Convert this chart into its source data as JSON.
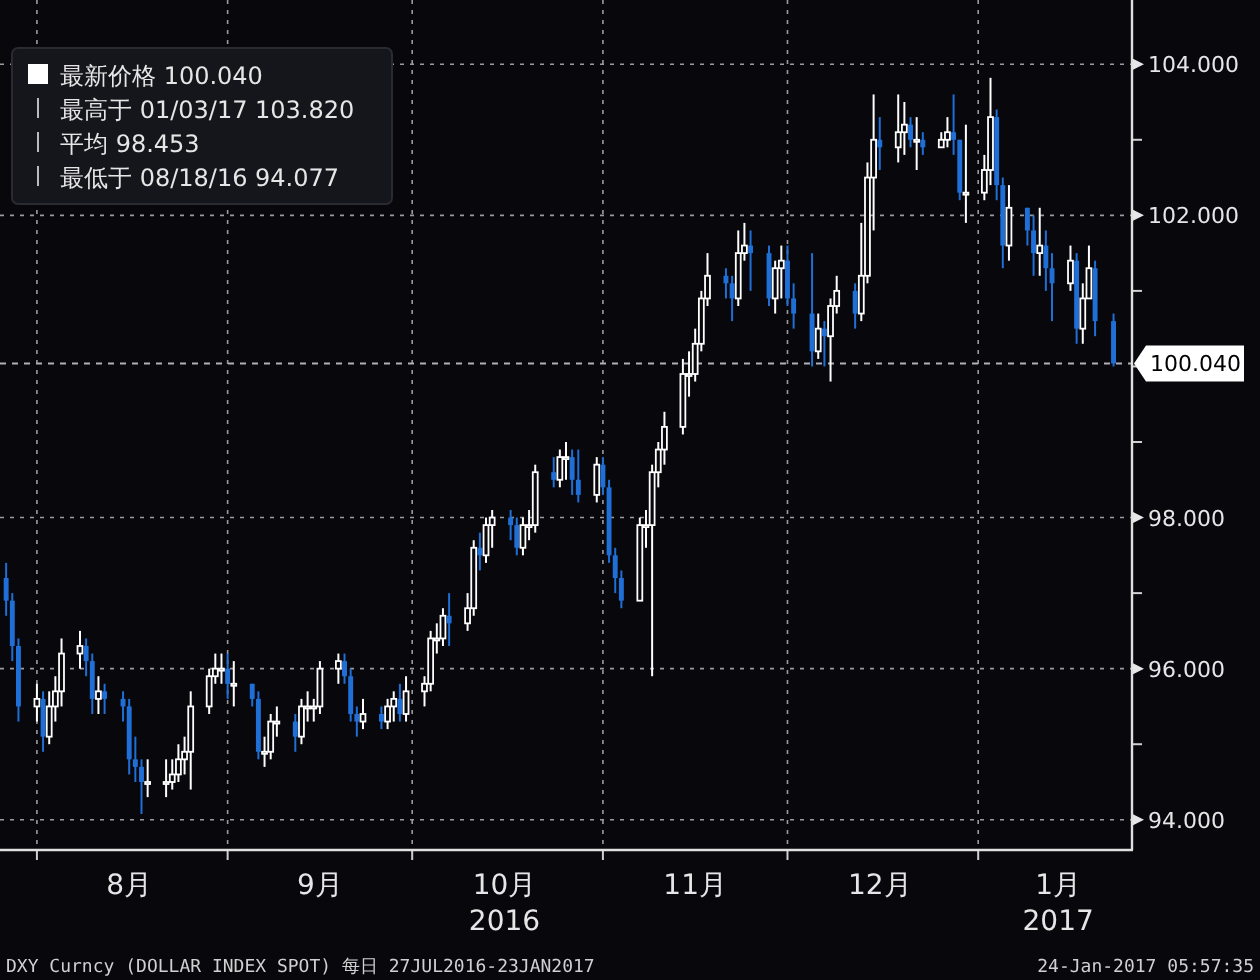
{
  "chart_data": {
    "type": "candlestick",
    "x": [
      "2016-07-27",
      "2016-07-28",
      "2016-07-29",
      "2016-08-01",
      "2016-08-02",
      "2016-08-03",
      "2016-08-04",
      "2016-08-05",
      "2016-08-08",
      "2016-08-09",
      "2016-08-10",
      "2016-08-11",
      "2016-08-12",
      "2016-08-15",
      "2016-08-16",
      "2016-08-17",
      "2016-08-18",
      "2016-08-19",
      "2016-08-22",
      "2016-08-23",
      "2016-08-24",
      "2016-08-25",
      "2016-08-26",
      "2016-08-29",
      "2016-08-30",
      "2016-08-31",
      "2016-09-01",
      "2016-09-02",
      "2016-09-05",
      "2016-09-06",
      "2016-09-07",
      "2016-09-08",
      "2016-09-09",
      "2016-09-12",
      "2016-09-13",
      "2016-09-14",
      "2016-09-15",
      "2016-09-16",
      "2016-09-19",
      "2016-09-20",
      "2016-09-21",
      "2016-09-22",
      "2016-09-23",
      "2016-09-26",
      "2016-09-27",
      "2016-09-28",
      "2016-09-29",
      "2016-09-30",
      "2016-10-03",
      "2016-10-04",
      "2016-10-05",
      "2016-10-06",
      "2016-10-07",
      "2016-10-10",
      "2016-10-11",
      "2016-10-12",
      "2016-10-13",
      "2016-10-14",
      "2016-10-17",
      "2016-10-18",
      "2016-10-19",
      "2016-10-20",
      "2016-10-21",
      "2016-10-24",
      "2016-10-25",
      "2016-10-26",
      "2016-10-27",
      "2016-10-28",
      "2016-10-31",
      "2016-11-01",
      "2016-11-02",
      "2016-11-03",
      "2016-11-04",
      "2016-11-07",
      "2016-11-08",
      "2016-11-09",
      "2016-11-10",
      "2016-11-11",
      "2016-11-14",
      "2016-11-15",
      "2016-11-16",
      "2016-11-17",
      "2016-11-18",
      "2016-11-21",
      "2016-11-22",
      "2016-11-23",
      "2016-11-24",
      "2016-11-25",
      "2016-11-28",
      "2016-11-29",
      "2016-11-30",
      "2016-12-01",
      "2016-12-02",
      "2016-12-05",
      "2016-12-06",
      "2016-12-07",
      "2016-12-08",
      "2016-12-09",
      "2016-12-12",
      "2016-12-13",
      "2016-12-14",
      "2016-12-15",
      "2016-12-16",
      "2016-12-19",
      "2016-12-20",
      "2016-12-21",
      "2016-12-22",
      "2016-12-23",
      "2016-12-26",
      "2016-12-27",
      "2016-12-28",
      "2016-12-29",
      "2016-12-30",
      "2017-01-02",
      "2017-01-03",
      "2017-01-04",
      "2017-01-05",
      "2017-01-06",
      "2017-01-09",
      "2017-01-10",
      "2017-01-11",
      "2017-01-12",
      "2017-01-13",
      "2017-01-16",
      "2017-01-17",
      "2017-01-18",
      "2017-01-19",
      "2017-01-20",
      "2017-01-23"
    ],
    "series": [
      {
        "name": "最新价格 100.040",
        "color": "#ffffff",
        "ohlc": [
          [
            97.2,
            97.4,
            96.7,
            96.9
          ],
          [
            96.9,
            97.0,
            96.1,
            96.3
          ],
          [
            96.3,
            96.4,
            95.3,
            95.5
          ],
          [
            95.5,
            95.8,
            95.3,
            95.6
          ],
          [
            95.6,
            95.7,
            94.9,
            95.1
          ],
          [
            95.1,
            95.7,
            95.0,
            95.5
          ],
          [
            95.5,
            95.9,
            95.3,
            95.7
          ],
          [
            95.7,
            96.4,
            95.5,
            96.2
          ],
          [
            96.2,
            96.5,
            96.0,
            96.3
          ],
          [
            96.3,
            96.4,
            95.9,
            96.1
          ],
          [
            96.1,
            96.2,
            95.4,
            95.6
          ],
          [
            95.6,
            95.9,
            95.4,
            95.7
          ],
          [
            95.7,
            95.8,
            95.4,
            95.6
          ],
          [
            95.6,
            95.7,
            95.3,
            95.5
          ],
          [
            95.5,
            95.6,
            94.6,
            94.8
          ],
          [
            94.8,
            95.1,
            94.5,
            94.7
          ],
          [
            94.7,
            94.8,
            94.077,
            94.5
          ],
          [
            94.5,
            94.8,
            94.3,
            94.5
          ],
          [
            94.5,
            94.8,
            94.3,
            94.5
          ],
          [
            94.5,
            94.8,
            94.4,
            94.6
          ],
          [
            94.6,
            95.0,
            94.5,
            94.8
          ],
          [
            94.8,
            95.1,
            94.6,
            94.9
          ],
          [
            94.9,
            95.7,
            94.4,
            95.5
          ],
          [
            95.5,
            96.0,
            95.4,
            95.9
          ],
          [
            95.9,
            96.2,
            95.8,
            96.0
          ],
          [
            96.0,
            96.2,
            95.8,
            96.0
          ],
          [
            96.0,
            96.2,
            95.6,
            95.8
          ],
          [
            95.8,
            96.1,
            95.5,
            95.8
          ],
          [
            95.8,
            95.8,
            95.5,
            95.6
          ],
          [
            95.6,
            95.7,
            94.8,
            94.9
          ],
          [
            94.9,
            95.1,
            94.7,
            94.9
          ],
          [
            94.9,
            95.4,
            94.8,
            95.3
          ],
          [
            95.3,
            95.5,
            95.1,
            95.3
          ],
          [
            95.3,
            95.4,
            94.9,
            95.1
          ],
          [
            95.1,
            95.6,
            95.0,
            95.5
          ],
          [
            95.5,
            95.7,
            95.3,
            95.5
          ],
          [
            95.5,
            95.6,
            95.3,
            95.5
          ],
          [
            95.5,
            96.1,
            95.4,
            96.0
          ],
          [
            96.0,
            96.2,
            95.8,
            96.1
          ],
          [
            96.1,
            96.2,
            95.8,
            95.9
          ],
          [
            95.9,
            96.0,
            95.3,
            95.4
          ],
          [
            95.4,
            95.5,
            95.1,
            95.3
          ],
          [
            95.3,
            95.6,
            95.2,
            95.4
          ],
          [
            95.4,
            95.5,
            95.2,
            95.3
          ],
          [
            95.3,
            95.6,
            95.2,
            95.5
          ],
          [
            95.5,
            95.7,
            95.3,
            95.6
          ],
          [
            95.6,
            95.8,
            95.3,
            95.4
          ],
          [
            95.4,
            95.9,
            95.3,
            95.7
          ],
          [
            95.7,
            95.9,
            95.5,
            95.8
          ],
          [
            95.8,
            96.5,
            95.7,
            96.4
          ],
          [
            96.4,
            96.6,
            96.2,
            96.4
          ],
          [
            96.4,
            96.8,
            96.3,
            96.7
          ],
          [
            96.7,
            97.0,
            96.3,
            96.6
          ],
          [
            96.6,
            97.0,
            96.5,
            96.8
          ],
          [
            96.8,
            97.7,
            96.7,
            97.6
          ],
          [
            97.6,
            97.8,
            97.3,
            97.5
          ],
          [
            97.5,
            98.0,
            97.4,
            97.9
          ],
          [
            97.9,
            98.1,
            97.6,
            98.0
          ],
          [
            98.0,
            98.1,
            97.7,
            97.9
          ],
          [
            97.9,
            98.0,
            97.5,
            97.6
          ],
          [
            97.6,
            98.0,
            97.5,
            97.9
          ],
          [
            97.9,
            98.1,
            97.7,
            97.9
          ],
          [
            97.9,
            98.7,
            97.8,
            98.6
          ],
          [
            98.6,
            98.8,
            98.4,
            98.5
          ],
          [
            98.5,
            98.9,
            98.4,
            98.8
          ],
          [
            98.8,
            99.0,
            98.5,
            98.8
          ],
          [
            98.8,
            98.9,
            98.3,
            98.5
          ],
          [
            98.5,
            98.9,
            98.2,
            98.3
          ],
          [
            98.3,
            98.8,
            98.2,
            98.7
          ],
          [
            98.7,
            98.8,
            98.3,
            98.4
          ],
          [
            98.4,
            98.5,
            97.4,
            97.5
          ],
          [
            97.5,
            97.6,
            97.0,
            97.2
          ],
          [
            97.2,
            97.3,
            96.8,
            96.9
          ],
          [
            96.9,
            98.0,
            96.9,
            97.9
          ],
          [
            97.9,
            98.1,
            97.6,
            97.9
          ],
          [
            97.9,
            98.7,
            95.9,
            98.6
          ],
          [
            98.6,
            99.0,
            98.4,
            98.9
          ],
          [
            98.9,
            99.4,
            98.7,
            99.2
          ],
          [
            99.2,
            100.1,
            99.1,
            99.9
          ],
          [
            99.9,
            100.2,
            99.6,
            99.9
          ],
          [
            99.9,
            100.5,
            99.8,
            100.3
          ],
          [
            100.3,
            101.0,
            100.2,
            100.9
          ],
          [
            100.9,
            101.5,
            100.8,
            101.2
          ],
          [
            101.2,
            101.3,
            100.9,
            101.1
          ],
          [
            101.1,
            101.2,
            100.6,
            100.9
          ],
          [
            100.9,
            101.8,
            100.8,
            101.5
          ],
          [
            101.5,
            101.9,
            101.4,
            101.6
          ],
          [
            101.6,
            101.8,
            101.0,
            101.5
          ],
          [
            101.5,
            101.6,
            100.8,
            100.9
          ],
          [
            100.9,
            101.4,
            100.7,
            101.3
          ],
          [
            101.3,
            101.6,
            100.9,
            101.4
          ],
          [
            101.4,
            101.6,
            100.8,
            100.9
          ],
          [
            100.9,
            101.1,
            100.5,
            100.7
          ],
          [
            100.7,
            101.5,
            100.0,
            100.2
          ],
          [
            100.2,
            100.7,
            100.1,
            100.5
          ],
          [
            100.5,
            100.6,
            100.0,
            100.4
          ],
          [
            100.4,
            100.9,
            99.8,
            100.8
          ],
          [
            100.8,
            101.2,
            100.7,
            101.0
          ],
          [
            101.0,
            101.1,
            100.5,
            100.7
          ],
          [
            100.7,
            101.9,
            100.6,
            101.2
          ],
          [
            101.2,
            102.7,
            101.1,
            102.5
          ],
          [
            102.5,
            103.6,
            101.8,
            103.0
          ],
          [
            103.0,
            103.3,
            102.6,
            102.9
          ],
          [
            102.9,
            103.6,
            102.7,
            103.1
          ],
          [
            103.1,
            103.5,
            102.8,
            103.2
          ],
          [
            103.2,
            103.3,
            102.9,
            103.0
          ],
          [
            103.0,
            103.3,
            102.6,
            103.0
          ],
          [
            103.0,
            103.1,
            102.8,
            102.9
          ],
          [
            102.9,
            103.1,
            102.9,
            103.0
          ],
          [
            103.0,
            103.3,
            102.9,
            103.1
          ],
          [
            103.1,
            103.6,
            102.8,
            103.0
          ],
          [
            103.0,
            103.0,
            102.2,
            102.3
          ],
          [
            102.3,
            103.2,
            101.9,
            102.3
          ],
          [
            102.3,
            102.8,
            102.2,
            102.6
          ],
          [
            102.6,
            103.82,
            102.4,
            103.3
          ],
          [
            103.3,
            103.4,
            102.2,
            102.4
          ],
          [
            102.4,
            102.5,
            101.3,
            101.6
          ],
          [
            101.6,
            102.4,
            101.4,
            102.1
          ],
          [
            102.1,
            102.1,
            101.6,
            101.8
          ],
          [
            101.8,
            102.0,
            101.2,
            101.5
          ],
          [
            101.5,
            102.1,
            101.2,
            101.6
          ],
          [
            101.6,
            101.8,
            101.0,
            101.3
          ],
          [
            101.3,
            101.5,
            100.6,
            101.1
          ],
          [
            101.1,
            101.6,
            101.0,
            101.4
          ],
          [
            101.4,
            101.5,
            100.3,
            100.5
          ],
          [
            100.5,
            101.1,
            100.3,
            100.9
          ],
          [
            100.9,
            101.6,
            100.9,
            101.3
          ],
          [
            101.3,
            101.4,
            100.4,
            100.6
          ],
          [
            100.6,
            100.7,
            100.0,
            100.04
          ]
        ],
        "colors": [
          "#1f6fd6",
          "#1f6fd6",
          "#1f6fd6",
          "#ffffff",
          "#1f6fd6",
          "#ffffff",
          "#ffffff",
          "#ffffff",
          "#ffffff",
          "#1f6fd6",
          "#1f6fd6",
          "#ffffff",
          "#1f6fd6",
          "#1f6fd6",
          "#1f6fd6",
          "#1f6fd6",
          "#1f6fd6",
          "#ffffff",
          "#ffffff",
          "#ffffff",
          "#ffffff",
          "#ffffff",
          "#ffffff",
          "#ffffff",
          "#ffffff",
          "#ffffff",
          "#1f6fd6",
          "#ffffff",
          "#1f6fd6",
          "#1f6fd6",
          "#ffffff",
          "#ffffff",
          "#ffffff",
          "#1f6fd6",
          "#ffffff",
          "#ffffff",
          "#ffffff",
          "#ffffff",
          "#ffffff",
          "#1f6fd6",
          "#1f6fd6",
          "#1f6fd6",
          "#ffffff",
          "#1f6fd6",
          "#ffffff",
          "#ffffff",
          "#1f6fd6",
          "#ffffff",
          "#ffffff",
          "#ffffff",
          "#ffffff",
          "#ffffff",
          "#1f6fd6",
          "#ffffff",
          "#ffffff",
          "#1f6fd6",
          "#ffffff",
          "#ffffff",
          "#1f6fd6",
          "#1f6fd6",
          "#ffffff",
          "#ffffff",
          "#ffffff",
          "#1f6fd6",
          "#ffffff",
          "#ffffff",
          "#1f6fd6",
          "#1f6fd6",
          "#ffffff",
          "#1f6fd6",
          "#1f6fd6",
          "#1f6fd6",
          "#1f6fd6",
          "#ffffff",
          "#ffffff",
          "#ffffff",
          "#ffffff",
          "#ffffff",
          "#ffffff",
          "#ffffff",
          "#ffffff",
          "#ffffff",
          "#ffffff",
          "#1f6fd6",
          "#1f6fd6",
          "#ffffff",
          "#ffffff",
          "#1f6fd6",
          "#1f6fd6",
          "#ffffff",
          "#ffffff",
          "#1f6fd6",
          "#1f6fd6",
          "#1f6fd6",
          "#ffffff",
          "#1f6fd6",
          "#ffffff",
          "#ffffff",
          "#1f6fd6",
          "#ffffff",
          "#ffffff",
          "#ffffff",
          "#1f6fd6",
          "#ffffff",
          "#ffffff",
          "#1f6fd6",
          "#ffffff",
          "#1f6fd6",
          "#ffffff",
          "#ffffff",
          "#1f6fd6",
          "#1f6fd6",
          "#ffffff",
          "#ffffff",
          "#ffffff",
          "#1f6fd6",
          "#1f6fd6",
          "#ffffff",
          "#1f6fd6",
          "#1f6fd6",
          "#ffffff",
          "#1f6fd6",
          "#1f6fd6",
          "#ffffff",
          "#1f6fd6",
          "#ffffff",
          "#ffffff",
          "#1f6fd6",
          "#1f6fd6"
        ]
      }
    ],
    "xlim": [
      "2016-07-26",
      "2017-01-26"
    ],
    "xticks": [
      {
        "value": "2016-08-01",
        "label": null
      },
      {
        "value": "2016-09-01",
        "label": null
      },
      {
        "value": "2016-10-01",
        "label": null
      },
      {
        "value": "2016-11-01",
        "label": null
      },
      {
        "value": "2016-12-01",
        "label": null
      },
      {
        "value": "2017-01-01",
        "label": null
      },
      {
        "value": "2016-08-16",
        "label": "8月"
      },
      {
        "value": "2016-09-16",
        "label": "9月"
      },
      {
        "value": "2016-10-16",
        "label": "10月"
      },
      {
        "value": "2016-11-16",
        "label": "11月"
      },
      {
        "value": "2016-12-16",
        "label": "12月"
      },
      {
        "value": "2017-01-14",
        "label": "1月"
      }
    ],
    "ylim": [
      93.6,
      104.85
    ],
    "yticks": [
      {
        "value": 94,
        "label": "94.000"
      },
      {
        "value": 95,
        "label": null
      },
      {
        "value": 96,
        "label": "96.000"
      },
      {
        "value": 97,
        "label": null
      },
      {
        "value": 98,
        "label": "98.000"
      },
      {
        "value": 99,
        "label": null
      },
      {
        "value": 100,
        "label": null
      },
      {
        "value": 101,
        "label": null
      },
      {
        "value": 102,
        "label": "102.000"
      },
      {
        "value": 103,
        "label": null
      },
      {
        "value": 104,
        "label": "104.000"
      }
    ],
    "ref_lines": [
      {
        "axis": "y",
        "value": 100.04,
        "label": "100.040",
        "line_style": "dashed"
      }
    ],
    "grid": true,
    "legend": "top left",
    "annotations": [
      "2016",
      "2017",
      "最高于 01/03/17 103.820",
      "平均 98.453",
      "最低于 08/18/16 94.077",
      "DXY Curncy (DOLLAR INDEX SPOT)  每日 27JUL2016-23JAN2017",
      "24-Jan-2017 05:57:35"
    ]
  }
}
